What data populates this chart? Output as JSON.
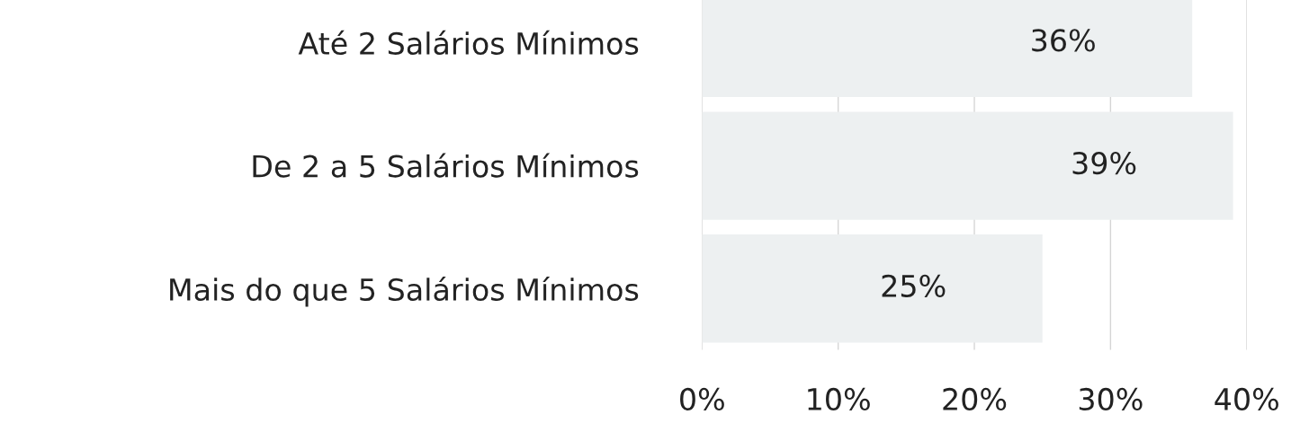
{
  "chart_data": {
    "type": "bar",
    "orientation": "horizontal",
    "categories": [
      "Até 2 Salários Mínimos",
      "De 2 a 5 Salários Mínimos",
      "Mais do que 5 Salários Mínimos"
    ],
    "values": [
      36,
      39,
      25
    ],
    "value_labels": [
      "36%",
      "39%",
      "25%"
    ],
    "color": "#edf0f1",
    "xlim": [
      0,
      40
    ],
    "xticks": [
      {
        "value": 0,
        "label": "0%"
      },
      {
        "value": 10,
        "label": "10%"
      },
      {
        "value": 20,
        "label": "20%"
      },
      {
        "value": 30,
        "label": "30%"
      },
      {
        "value": 40,
        "label": "40%"
      }
    ],
    "grid": "x",
    "legend": false
  }
}
